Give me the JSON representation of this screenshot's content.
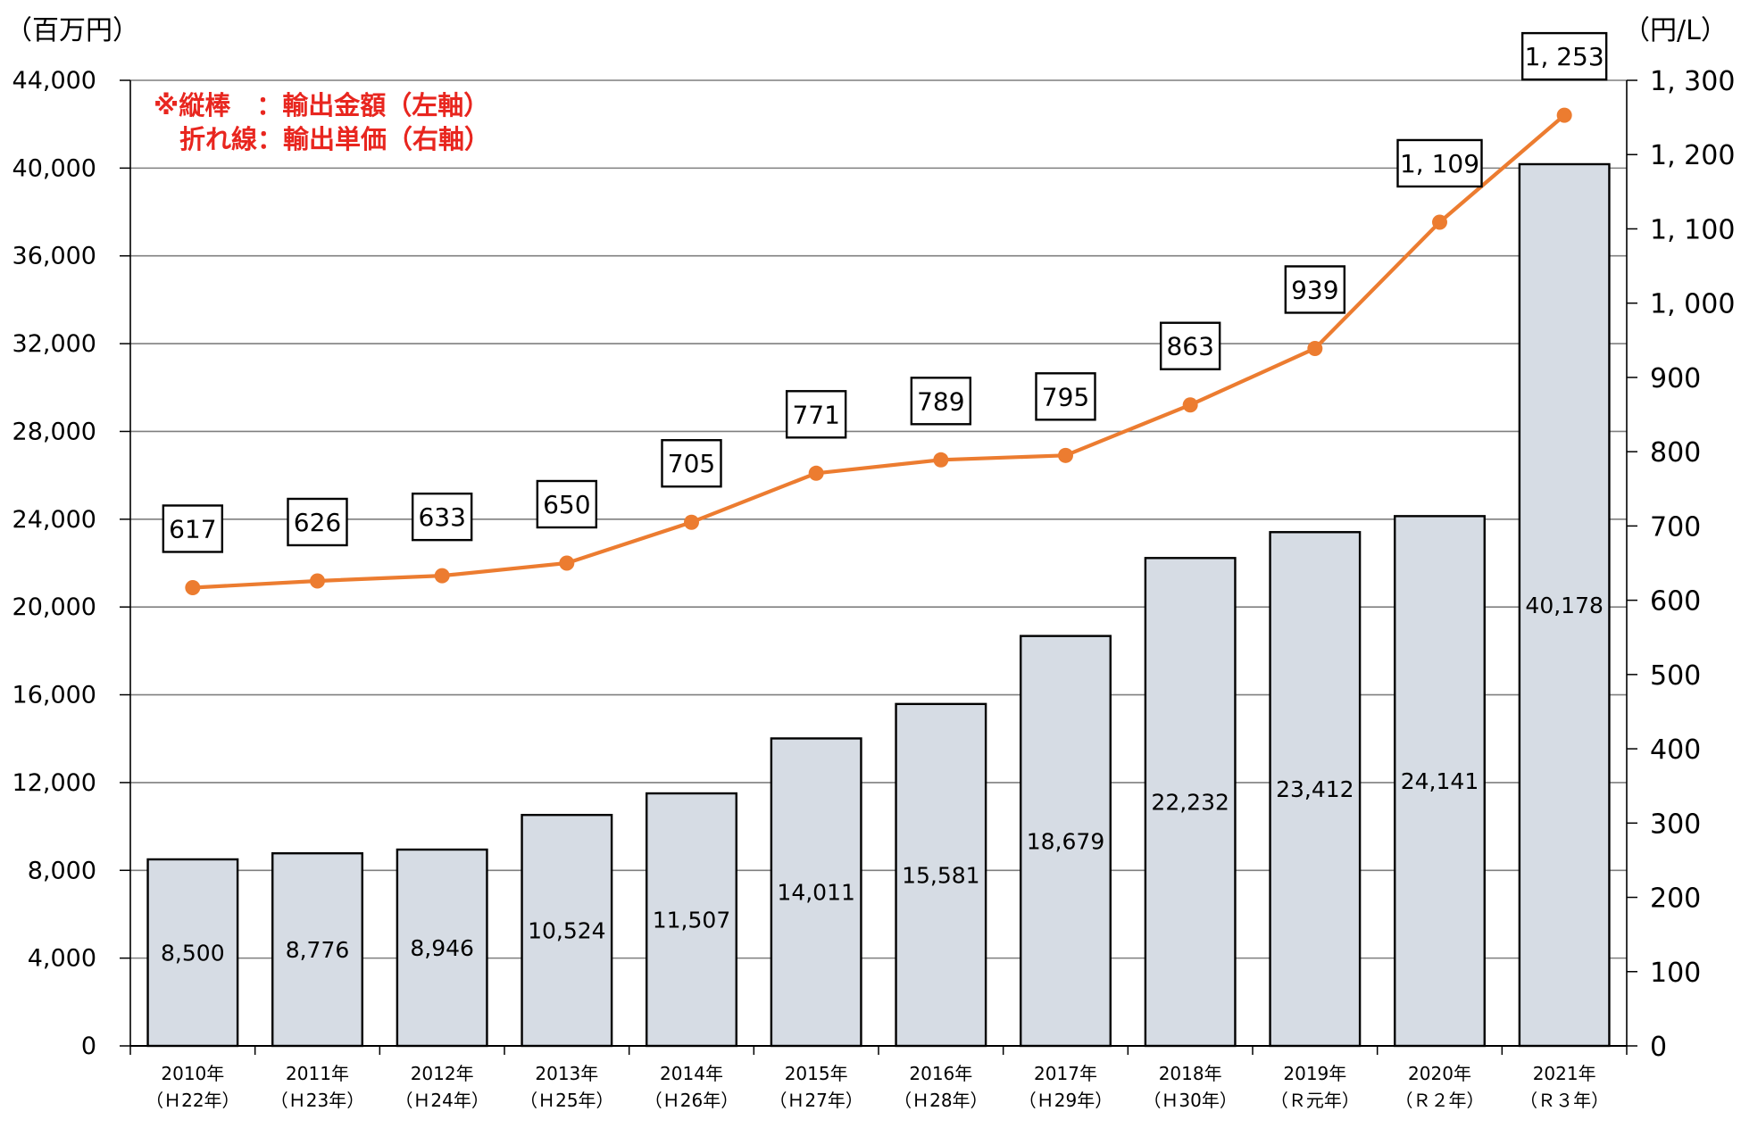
{
  "chart_data": {
    "type": "bar+line",
    "left_axis_unit": "（百万円）",
    "right_axis_unit": "（円/L）",
    "left_ticks": [
      "0",
      "4,000",
      "8,000",
      "12,000",
      "16,000",
      "20,000",
      "24,000",
      "28,000",
      "32,000",
      "36,000",
      "40,000",
      "44,000"
    ],
    "right_ticks": [
      "0",
      "100",
      "200",
      "300",
      "400",
      "500",
      "600",
      "700",
      "800",
      "900",
      "1, 000",
      "1, 100",
      "1, 200",
      "1, 300"
    ],
    "ylim_left": [
      0,
      44000
    ],
    "ylim_right": [
      0,
      1300
    ],
    "categories": [
      {
        "year": "2010年",
        "era": "（Ｈ22年）"
      },
      {
        "year": "2011年",
        "era": "（Ｈ23年）"
      },
      {
        "year": "2012年",
        "era": "（Ｈ24年）"
      },
      {
        "year": "2013年",
        "era": "（Ｈ25年）"
      },
      {
        "year": "2014年",
        "era": "（Ｈ26年）"
      },
      {
        "year": "2015年",
        "era": "（Ｈ27年）"
      },
      {
        "year": "2016年",
        "era": "（Ｈ28年）"
      },
      {
        "year": "2017年",
        "era": "（Ｈ29年）"
      },
      {
        "year": "2018年",
        "era": "（Ｈ30年）"
      },
      {
        "year": "2019年",
        "era": "（Ｒ元年）"
      },
      {
        "year": "2020年",
        "era": "（Ｒ２年）"
      },
      {
        "year": "2021年",
        "era": "（Ｒ３年）"
      }
    ],
    "series": [
      {
        "name": "輸出金額",
        "axis": "left",
        "kind": "bar",
        "values": [
          8500,
          8776,
          8946,
          10524,
          11507,
          14011,
          15581,
          18679,
          22232,
          23412,
          24141,
          40178
        ],
        "labels": [
          "8,500",
          "8,776",
          "8,946",
          "10,524",
          "11,507",
          "14,011",
          "15,581",
          "18,679",
          "22,232",
          "23,412",
          "24,141",
          "40,178"
        ]
      },
      {
        "name": "輸出単価",
        "axis": "right",
        "kind": "line",
        "values": [
          617,
          626,
          633,
          650,
          705,
          771,
          789,
          795,
          863,
          939,
          1109,
          1253
        ],
        "labels": [
          "617",
          "626",
          "633",
          "650",
          "705",
          "771",
          "789",
          "795",
          "863",
          "939",
          "1, 109",
          "1, 253"
        ]
      }
    ],
    "legend": {
      "line1": "※縦棒　：輸出金額（左軸）",
      "line2": "　折れ線：輸出単価（右軸）",
      "color": "#e8261f",
      "position": "top-left"
    },
    "colors": {
      "bar_fill": "#d6dce4",
      "bar_stroke": "#000000",
      "line": "#ec7c30",
      "grid": "#7f7f7f"
    }
  }
}
